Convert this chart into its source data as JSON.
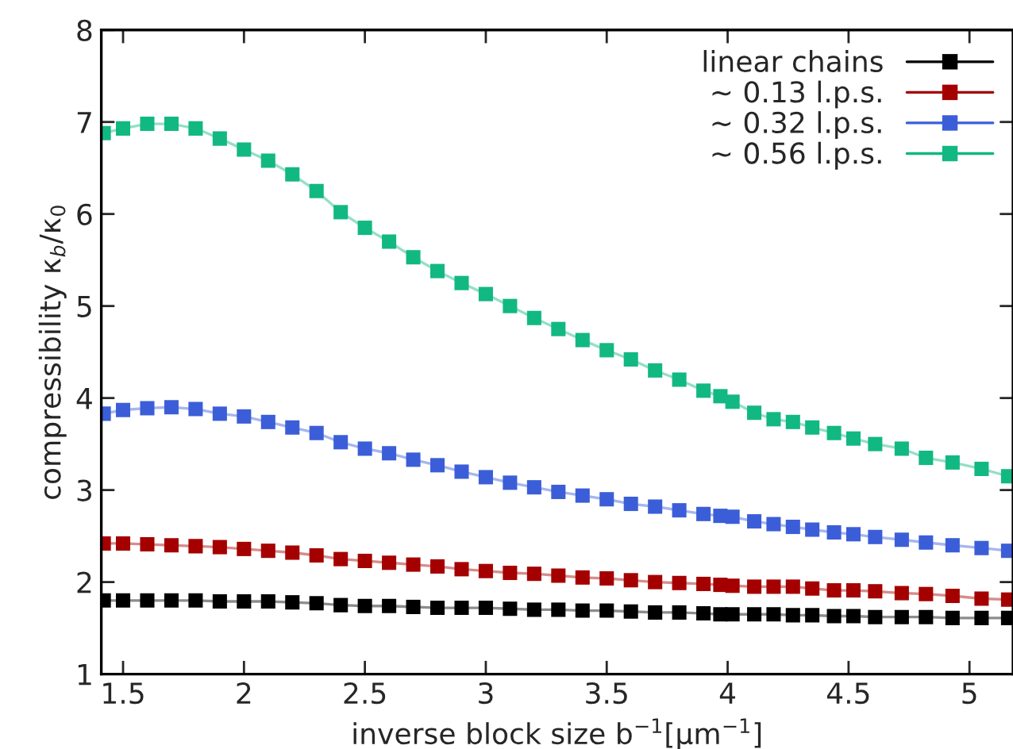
{
  "chart_data": {
    "type": "line",
    "xlabel": "inverse block size b$^{−1}$[μm$^{−1}$]",
    "ylabel": "compressibility κ$_{b}$/κ$_{0}$",
    "x": [
      1.42,
      1.5,
      1.6,
      1.7,
      1.8,
      1.9,
      2.0,
      2.1,
      2.2,
      2.3,
      2.4,
      2.5,
      2.6,
      2.7,
      2.8,
      2.9,
      3.0,
      3.1,
      3.2,
      3.3,
      3.4,
      3.5,
      3.6,
      3.7,
      3.8,
      3.9,
      3.97,
      4.02,
      4.11,
      4.19,
      4.27,
      4.35,
      4.44,
      4.52,
      4.61,
      4.72,
      4.82,
      4.93,
      5.05,
      5.16
    ],
    "series": [
      {
        "name": "linear chains",
        "color": "#000000",
        "values": [
          1.8,
          1.8,
          1.8,
          1.8,
          1.8,
          1.79,
          1.79,
          1.79,
          1.78,
          1.77,
          1.75,
          1.74,
          1.74,
          1.73,
          1.72,
          1.72,
          1.72,
          1.71,
          1.7,
          1.7,
          1.69,
          1.69,
          1.68,
          1.67,
          1.67,
          1.66,
          1.65,
          1.65,
          1.65,
          1.65,
          1.64,
          1.64,
          1.63,
          1.63,
          1.62,
          1.62,
          1.62,
          1.61,
          1.61,
          1.61
        ]
      },
      {
        "name": "∼ 0.13 l.p.s.",
        "color": "#a50000",
        "values": [
          2.42,
          2.42,
          2.41,
          2.4,
          2.39,
          2.38,
          2.36,
          2.34,
          2.32,
          2.29,
          2.25,
          2.23,
          2.21,
          2.19,
          2.17,
          2.14,
          2.12,
          2.1,
          2.09,
          2.07,
          2.05,
          2.04,
          2.02,
          2.0,
          1.99,
          1.98,
          1.97,
          1.96,
          1.95,
          1.95,
          1.95,
          1.93,
          1.91,
          1.91,
          1.9,
          1.88,
          1.87,
          1.85,
          1.82,
          1.81
        ]
      },
      {
        "name": "∼ 0.32 l.p.s.",
        "color": "#3b5ed8",
        "values": [
          3.83,
          3.87,
          3.89,
          3.9,
          3.88,
          3.83,
          3.8,
          3.74,
          3.68,
          3.62,
          3.52,
          3.45,
          3.4,
          3.33,
          3.27,
          3.2,
          3.14,
          3.08,
          3.03,
          2.98,
          2.94,
          2.9,
          2.85,
          2.82,
          2.78,
          2.74,
          2.72,
          2.71,
          2.66,
          2.63,
          2.6,
          2.57,
          2.54,
          2.52,
          2.49,
          2.46,
          2.43,
          2.4,
          2.37,
          2.34
        ]
      },
      {
        "name": "∼ 0.56 l.p.s.",
        "color": "#12b882",
        "values": [
          6.88,
          6.93,
          6.98,
          6.98,
          6.93,
          6.82,
          6.7,
          6.58,
          6.43,
          6.25,
          6.02,
          5.85,
          5.7,
          5.53,
          5.38,
          5.25,
          5.13,
          5.0,
          4.87,
          4.75,
          4.63,
          4.52,
          4.42,
          4.3,
          4.2,
          4.08,
          4.02,
          3.96,
          3.84,
          3.77,
          3.74,
          3.68,
          3.62,
          3.56,
          3.5,
          3.45,
          3.35,
          3.3,
          3.23,
          3.15
        ]
      }
    ],
    "xlim": [
      1.41,
      5.18
    ],
    "ylim": [
      1,
      8
    ],
    "xticks": [
      1.5,
      2,
      2.5,
      3,
      3.5,
      4,
      4.5,
      5
    ],
    "yticks": [
      1,
      2,
      3,
      4,
      5,
      6,
      7,
      8
    ],
    "marker": "square",
    "line_style": "solid",
    "grid": false,
    "legend": "top right"
  }
}
